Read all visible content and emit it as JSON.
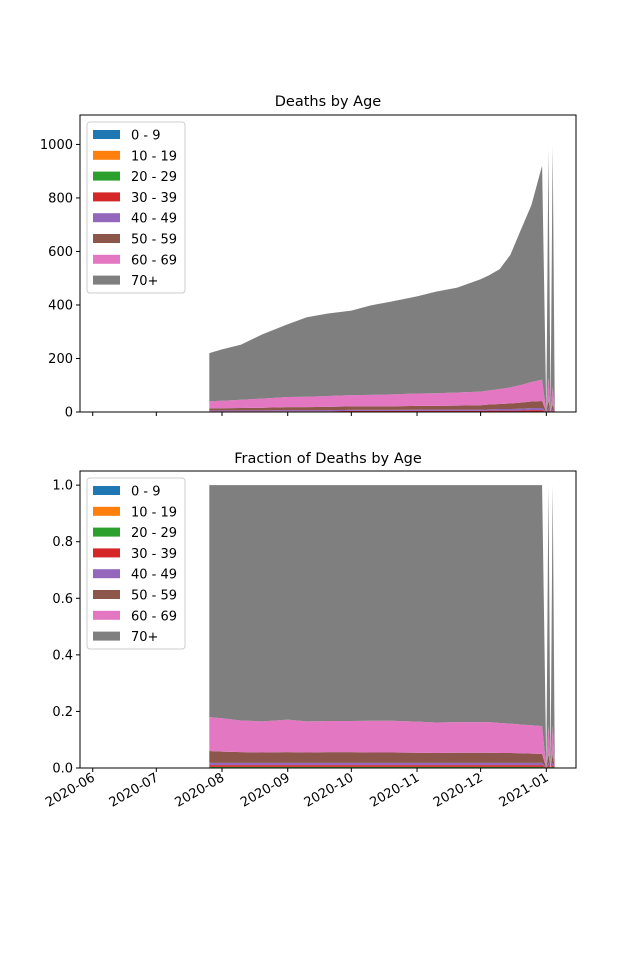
{
  "chart_data": [
    {
      "type": "area",
      "stacked": true,
      "title": "Deaths by Age",
      "xlabel": "",
      "ylabel": "",
      "xlim": [
        "2020-05-26",
        "2021-01-15"
      ],
      "ylim": [
        0,
        1110
      ],
      "yticks": [
        0,
        200,
        400,
        600,
        800,
        1000
      ],
      "xticks": [
        "2020-06",
        "2020-07",
        "2020-08",
        "2020-09",
        "2020-10",
        "2020-11",
        "2020-12",
        "2021-01"
      ],
      "show_xtick_labels": false,
      "grid": false,
      "legend": "top-left",
      "x": [
        "2020-07-26",
        "2020-08-01",
        "2020-08-10",
        "2020-08-20",
        "2020-09-01",
        "2020-09-10",
        "2020-09-20",
        "2020-10-01",
        "2020-10-10",
        "2020-10-20",
        "2020-11-01",
        "2020-11-10",
        "2020-11-20",
        "2020-12-01",
        "2020-12-05",
        "2020-12-10",
        "2020-12-15",
        "2020-12-20",
        "2020-12-25",
        "2020-12-30",
        "2021-01-01",
        "2021-01-02",
        "2021-01-03",
        "2021-01-04",
        "2021-01-05"
      ],
      "series": [
        {
          "name": "0 - 9",
          "values": [
            0,
            0,
            0,
            0,
            0,
            0,
            0,
            0,
            0,
            0,
            0,
            0,
            0,
            0,
            0,
            0,
            0,
            0,
            0,
            0,
            0,
            0,
            0,
            0,
            0
          ]
        },
        {
          "name": "10 - 19",
          "values": [
            0,
            0,
            0,
            0,
            0,
            0,
            0,
            0,
            0,
            0,
            0,
            0,
            0,
            0,
            0,
            0,
            0,
            0,
            0,
            0,
            0,
            0,
            0,
            0,
            0
          ]
        },
        {
          "name": "20 - 29",
          "values": [
            1,
            1,
            1,
            1,
            1,
            1,
            1,
            1,
            1,
            1,
            1,
            1,
            1,
            1,
            1,
            1,
            1,
            1,
            2,
            2,
            0,
            2,
            0,
            1,
            0
          ]
        },
        {
          "name": "30 - 39",
          "values": [
            2,
            2,
            2,
            2,
            2,
            2,
            2,
            3,
            3,
            3,
            3,
            3,
            3,
            3,
            4,
            4,
            4,
            4,
            5,
            5,
            0,
            5,
            0,
            3,
            0
          ]
        },
        {
          "name": "40 - 49",
          "values": [
            3,
            3,
            3,
            3,
            4,
            4,
            4,
            4,
            4,
            4,
            5,
            5,
            5,
            5,
            5,
            6,
            6,
            7,
            8,
            8,
            0,
            8,
            0,
            5,
            0
          ]
        },
        {
          "name": "50 - 59",
          "values": [
            8,
            8,
            9,
            10,
            11,
            11,
            12,
            13,
            13,
            13,
            14,
            14,
            15,
            16,
            18,
            19,
            21,
            23,
            24,
            26,
            0,
            28,
            0,
            20,
            0
          ]
        },
        {
          "name": "60 - 69",
          "values": [
            26,
            28,
            31,
            34,
            38,
            39,
            41,
            42,
            43,
            45,
            46,
            47,
            49,
            51,
            53,
            56,
            60,
            66,
            73,
            80,
            0,
            85,
            0,
            65,
            0
          ]
        },
        {
          "name": "70+",
          "values": [
            180,
            192,
            206,
            240,
            272,
            297,
            308,
            316,
            334,
            347,
            363,
            380,
            392,
            420,
            430,
            448,
            495,
            580,
            662,
            800,
            0,
            855,
            0,
            900,
            0
          ]
        }
      ]
    },
    {
      "type": "area",
      "stacked": true,
      "title": "Fraction of Deaths by Age",
      "xlabel": "",
      "ylabel": "",
      "xlim": [
        "2020-05-26",
        "2021-01-15"
      ],
      "ylim": [
        0,
        1.05
      ],
      "yticks": [
        0,
        0.2,
        0.4,
        0.6,
        0.8,
        1
      ],
      "ytick_labels": [
        "0.0",
        "0.2",
        "0.4",
        "0.6",
        "0.8",
        "1.0"
      ],
      "xticks": [
        "2020-06",
        "2020-07",
        "2020-08",
        "2020-09",
        "2020-10",
        "2020-11",
        "2020-12",
        "2021-01"
      ],
      "show_xtick_labels": true,
      "grid": false,
      "legend": "top-left",
      "x": [
        "2020-07-26",
        "2020-08-01",
        "2020-08-10",
        "2020-08-20",
        "2020-09-01",
        "2020-09-10",
        "2020-09-20",
        "2020-10-01",
        "2020-10-10",
        "2020-10-20",
        "2020-11-01",
        "2020-11-10",
        "2020-11-20",
        "2020-12-01",
        "2020-12-05",
        "2020-12-10",
        "2020-12-15",
        "2020-12-20",
        "2020-12-25",
        "2020-12-30",
        "2021-01-01",
        "2021-01-02",
        "2021-01-03",
        "2021-01-04",
        "2021-01-05"
      ],
      "series": [
        {
          "name": "0 - 9",
          "values": [
            0,
            0,
            0,
            0,
            0,
            0,
            0,
            0,
            0,
            0,
            0,
            0,
            0,
            0,
            0,
            0,
            0,
            0,
            0,
            0,
            0,
            0,
            0,
            0,
            0
          ]
        },
        {
          "name": "10 - 19",
          "values": [
            0,
            0,
            0,
            0,
            0,
            0,
            0,
            0,
            0,
            0,
            0,
            0,
            0,
            0,
            0,
            0,
            0,
            0,
            0,
            0,
            0,
            0,
            0,
            0,
            0
          ]
        },
        {
          "name": "20 - 29",
          "values": [
            0.004,
            0.004,
            0.004,
            0.004,
            0.004,
            0.004,
            0.004,
            0.004,
            0.004,
            0.004,
            0.004,
            0.004,
            0.004,
            0.004,
            0.004,
            0.004,
            0.004,
            0.004,
            0.004,
            0.004,
            0,
            0.004,
            0,
            0.004,
            0
          ]
        },
        {
          "name": "30 - 39",
          "values": [
            0.006,
            0.006,
            0.006,
            0.006,
            0.006,
            0.006,
            0.006,
            0.006,
            0.006,
            0.006,
            0.006,
            0.006,
            0.006,
            0.006,
            0.006,
            0.006,
            0.006,
            0.006,
            0.006,
            0.006,
            0,
            0.006,
            0,
            0.006,
            0
          ]
        },
        {
          "name": "40 - 49",
          "values": [
            0.008,
            0.008,
            0.008,
            0.008,
            0.008,
            0.008,
            0.008,
            0.008,
            0.008,
            0.008,
            0.008,
            0.008,
            0.008,
            0.008,
            0.008,
            0.008,
            0.008,
            0.008,
            0.008,
            0.008,
            0,
            0.008,
            0,
            0.008,
            0
          ]
        },
        {
          "name": "50 - 59",
          "values": [
            0.042,
            0.04,
            0.038,
            0.037,
            0.038,
            0.037,
            0.038,
            0.038,
            0.037,
            0.037,
            0.036,
            0.035,
            0.036,
            0.036,
            0.036,
            0.035,
            0.035,
            0.034,
            0.033,
            0.032,
            0,
            0.032,
            0,
            0.032,
            0
          ]
        },
        {
          "name": "60 - 69",
          "values": [
            0.12,
            0.118,
            0.112,
            0.11,
            0.115,
            0.11,
            0.11,
            0.11,
            0.112,
            0.112,
            0.11,
            0.108,
            0.108,
            0.108,
            0.108,
            0.106,
            0.104,
            0.102,
            0.1,
            0.098,
            0,
            0.1,
            0,
            0.1,
            0
          ]
        },
        {
          "name": "70+",
          "values": [
            0.82,
            0.824,
            0.832,
            0.835,
            0.829,
            0.835,
            0.834,
            0.834,
            0.833,
            0.833,
            0.836,
            0.839,
            0.838,
            0.838,
            0.838,
            0.841,
            0.843,
            0.846,
            0.849,
            0.852,
            0,
            0.85,
            0,
            0.85,
            0
          ]
        }
      ]
    }
  ],
  "colors": [
    "#1f77b4",
    "#ff7f0e",
    "#2ca02c",
    "#d62728",
    "#9467bd",
    "#8c564b",
    "#e377c2",
    "#7f7f7f"
  ]
}
